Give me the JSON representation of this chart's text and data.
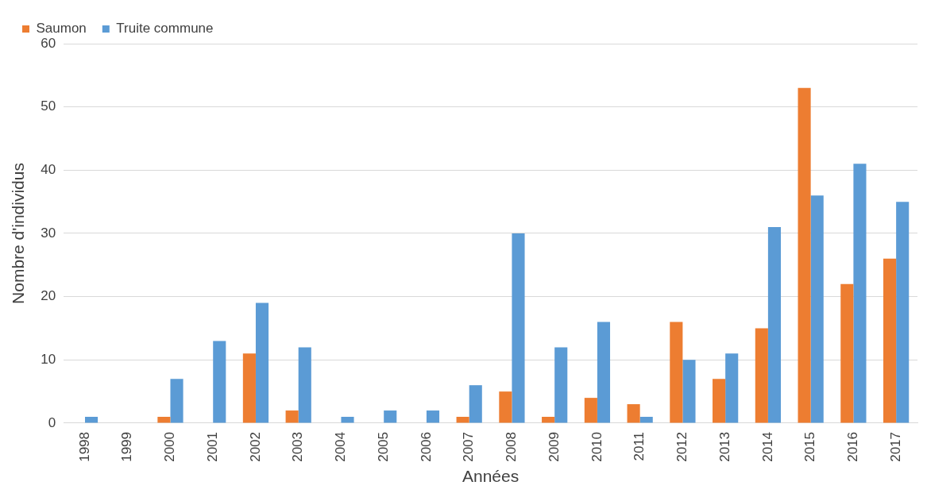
{
  "chart_data": {
    "type": "bar",
    "xlabel": "Années",
    "ylabel": "Nombre d'individus",
    "categories": [
      "1998",
      "1999",
      "2000",
      "2001",
      "2002",
      "2003",
      "2004",
      "2005",
      "2006",
      "2007",
      "2008",
      "2009",
      "2010",
      "2011",
      "2012",
      "2013",
      "2014",
      "2015",
      "2016",
      "2017"
    ],
    "series": [
      {
        "name": "Saumon",
        "color": "#ed7d31",
        "values": [
          0,
          0,
          1,
          0,
          11,
          2,
          0,
          0,
          0,
          1,
          5,
          1,
          4,
          3,
          16,
          7,
          15,
          53,
          22,
          26
        ]
      },
      {
        "name": "Truite commune",
        "color": "#5b9bd5",
        "values": [
          1,
          0,
          7,
          13,
          19,
          12,
          1,
          2,
          2,
          6,
          30,
          12,
          16,
          1,
          10,
          11,
          31,
          36,
          41,
          35
        ]
      }
    ],
    "ylim": [
      0,
      60
    ],
    "yticks": [
      0,
      10,
      20,
      30,
      40,
      50,
      60
    ],
    "grid": "y",
    "legend": "top left"
  }
}
